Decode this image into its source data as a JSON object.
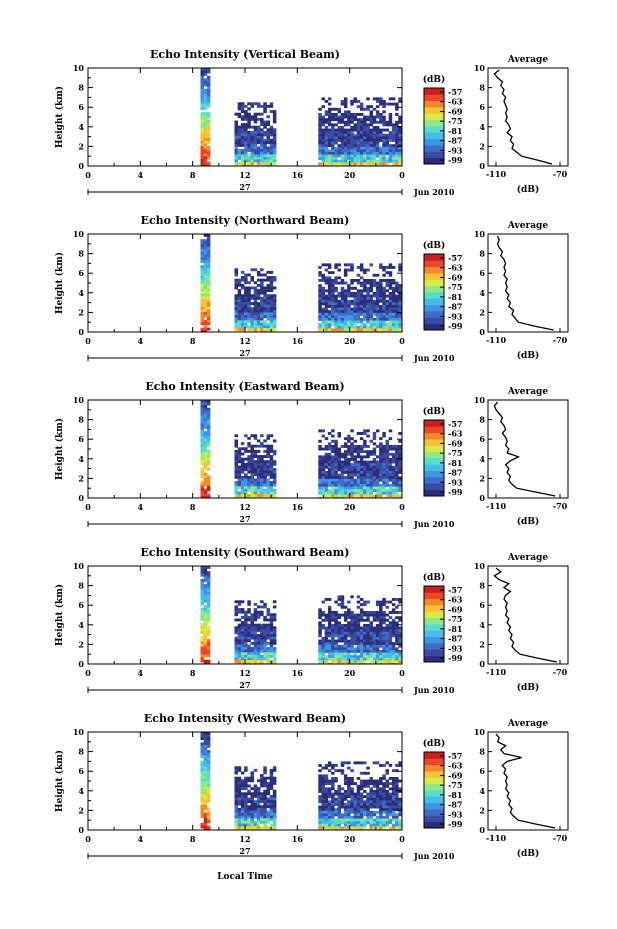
{
  "colors": {
    "scale": [
      "#2b2d7a",
      "#3a4aa0",
      "#3f6cc8",
      "#3d95e6",
      "#45bde9",
      "#58dccb",
      "#8fe88a",
      "#d8ea45",
      "#f6c333",
      "#f48a27",
      "#e8472a",
      "#c81f20"
    ]
  },
  "chart_data": [
    {
      "type": "heatmap",
      "title": "Echo Intensity (Vertical Beam)",
      "ylabel": "Height (km)",
      "yticks": [
        "0",
        "2",
        "4",
        "6",
        "8",
        "10"
      ],
      "xticks": [
        "0",
        "4",
        "8",
        "12",
        "16",
        "20",
        "0"
      ],
      "ylim": [
        0,
        10
      ],
      "xlim": [
        0,
        24
      ],
      "date_label": "27",
      "month_label": "Jun 2010",
      "colorbar": {
        "unit": "(dB)",
        "ticks": [
          "-57",
          "-63",
          "-69",
          "-75",
          "-81",
          "-87",
          "-93",
          "-99"
        ]
      },
      "data_blocks": [
        {
          "x": [
            8.6,
            9.1
          ],
          "y": [
            0,
            10
          ]
        },
        {
          "x": [
            11.2,
            14.2
          ],
          "y": [
            0,
            6.5
          ]
        },
        {
          "x": [
            17.6,
            23.8
          ],
          "y": [
            0,
            7
          ]
        }
      ],
      "profile": {
        "title": "Average",
        "xlabel": "(dB)",
        "xticks": [
          "-110",
          "-70"
        ],
        "xlim": [
          -115,
          -65
        ],
        "ylim": [
          0,
          10
        ],
        "height": [
          0.2,
          0.6,
          1,
          1.4,
          1.8,
          2.2,
          2.6,
          3,
          3.4,
          3.8,
          4.2,
          4.6,
          5,
          5.4,
          5.8,
          6.2,
          6.6,
          7,
          7.4,
          7.8,
          8.2,
          8.6,
          9,
          9.4,
          9.8
        ],
        "values": [
          -75,
          -84,
          -94,
          -97,
          -100,
          -99,
          -101,
          -100,
          -103,
          -101,
          -102,
          -104,
          -103,
          -104,
          -103,
          -104,
          -105,
          -104,
          -106,
          -105,
          -107,
          -106,
          -109,
          -111,
          -108
        ]
      }
    },
    {
      "type": "heatmap",
      "title": "Echo Intensity (Northward Beam)",
      "ylabel": "Height (km)",
      "yticks": [
        "0",
        "2",
        "4",
        "6",
        "8",
        "10"
      ],
      "xticks": [
        "0",
        "4",
        "8",
        "12",
        "16",
        "20",
        "0"
      ],
      "ylim": [
        0,
        10
      ],
      "xlim": [
        0,
        24
      ],
      "date_label": "27",
      "month_label": "Jun 2010",
      "colorbar": {
        "unit": "(dB)",
        "ticks": [
          "-57",
          "-63",
          "-69",
          "-75",
          "-81",
          "-87",
          "-93",
          "-99"
        ]
      },
      "data_blocks": [
        {
          "x": [
            8.6,
            9.1
          ],
          "y": [
            0,
            10
          ]
        },
        {
          "x": [
            11.2,
            14.2
          ],
          "y": [
            0,
            6.5
          ]
        },
        {
          "x": [
            17.6,
            23.8
          ],
          "y": [
            0,
            7
          ]
        }
      ],
      "profile": {
        "title": "Average",
        "xlabel": "(dB)",
        "xticks": [
          "-110",
          "-70"
        ],
        "xlim": [
          -115,
          -65
        ],
        "ylim": [
          0,
          10
        ],
        "height": [
          0.2,
          0.6,
          1,
          1.4,
          1.8,
          2.2,
          2.6,
          3,
          3.4,
          3.8,
          4.2,
          4.6,
          5,
          5.4,
          5.8,
          6.2,
          6.6,
          7,
          7.4,
          7.8,
          8.2,
          8.6,
          9,
          9.4,
          9.8
        ],
        "values": [
          -74,
          -86,
          -96,
          -98,
          -100,
          -99,
          -102,
          -101,
          -103,
          -102,
          -104,
          -103,
          -104,
          -103,
          -105,
          -104,
          -105,
          -104,
          -105,
          -107,
          -106,
          -108,
          -109,
          -108,
          -109
        ]
      }
    },
    {
      "type": "heatmap",
      "title": "Echo Intensity (Eastward Beam)",
      "ylabel": "Height (km)",
      "yticks": [
        "0",
        "2",
        "4",
        "6",
        "8",
        "10"
      ],
      "xticks": [
        "0",
        "4",
        "8",
        "12",
        "16",
        "20",
        "0"
      ],
      "ylim": [
        0,
        10
      ],
      "xlim": [
        0,
        24
      ],
      "date_label": "27",
      "month_label": "Jun 2010",
      "colorbar": {
        "unit": "(dB)",
        "ticks": [
          "-57",
          "-63",
          "-69",
          "-75",
          "-81",
          "-87",
          "-93",
          "-99"
        ]
      },
      "data_blocks": [
        {
          "x": [
            8.6,
            9.1
          ],
          "y": [
            0,
            10
          ]
        },
        {
          "x": [
            11.2,
            14.2
          ],
          "y": [
            0,
            6.5
          ]
        },
        {
          "x": [
            17.6,
            23.8
          ],
          "y": [
            0,
            7
          ]
        }
      ],
      "profile": {
        "title": "Average",
        "xlabel": "(dB)",
        "xticks": [
          "-110",
          "-70"
        ],
        "xlim": [
          -115,
          -65
        ],
        "ylim": [
          0,
          10
        ],
        "height": [
          0.2,
          0.6,
          1,
          1.4,
          1.8,
          2.2,
          2.6,
          3,
          3.4,
          3.8,
          4.2,
          4.6,
          5,
          5.4,
          5.8,
          6.2,
          6.6,
          7,
          7.4,
          7.8,
          8.2,
          8.6,
          9,
          9.4,
          9.8
        ],
        "values": [
          -73,
          -85,
          -97,
          -100,
          -102,
          -101,
          -103,
          -102,
          -104,
          -101,
          -96,
          -103,
          -102,
          -104,
          -103,
          -104,
          -106,
          -104,
          -105,
          -107,
          -106,
          -108,
          -110,
          -111,
          -109
        ]
      }
    },
    {
      "type": "heatmap",
      "title": "Echo Intensity (Southward Beam)",
      "ylabel": "Height (km)",
      "yticks": [
        "0",
        "2",
        "4",
        "6",
        "8",
        "10"
      ],
      "xticks": [
        "0",
        "4",
        "8",
        "12",
        "16",
        "20",
        "0"
      ],
      "ylim": [
        0,
        10
      ],
      "xlim": [
        0,
        24
      ],
      "date_label": "27",
      "month_label": "Jun 2010",
      "colorbar": {
        "unit": "(dB)",
        "ticks": [
          "-57",
          "-63",
          "-69",
          "-75",
          "-81",
          "-87",
          "-93",
          "-99"
        ]
      },
      "data_blocks": [
        {
          "x": [
            8.6,
            9.1
          ],
          "y": [
            0,
            10
          ]
        },
        {
          "x": [
            11.2,
            14.2
          ],
          "y": [
            0,
            6.5
          ]
        },
        {
          "x": [
            17.6,
            23.8
          ],
          "y": [
            0,
            7
          ]
        }
      ],
      "profile": {
        "title": "Average",
        "xlabel": "(dB)",
        "xticks": [
          "-110",
          "-70"
        ],
        "xlim": [
          -115,
          -65
        ],
        "ylim": [
          0,
          10
        ],
        "height": [
          0.2,
          0.6,
          1,
          1.4,
          1.8,
          2.2,
          2.6,
          3,
          3.4,
          3.8,
          4.2,
          4.6,
          5,
          5.4,
          5.8,
          6.2,
          6.6,
          7,
          7.4,
          7.8,
          8.2,
          8.6,
          9,
          9.4,
          9.8
        ],
        "values": [
          -72,
          -84,
          -95,
          -98,
          -100,
          -99,
          -101,
          -100,
          -102,
          -101,
          -103,
          -102,
          -104,
          -103,
          -104,
          -103,
          -105,
          -104,
          -101,
          -105,
          -102,
          -108,
          -111,
          -107,
          -110
        ]
      }
    },
    {
      "type": "heatmap",
      "title": "Echo Intensity (Westward Beam)",
      "ylabel": "Height (km)",
      "yticks": [
        "0",
        "2",
        "4",
        "6",
        "8",
        "10"
      ],
      "xticks": [
        "0",
        "4",
        "8",
        "12",
        "16",
        "20",
        "0"
      ],
      "ylim": [
        0,
        10
      ],
      "xlim": [
        0,
        24
      ],
      "date_label": "27",
      "month_label": "Jun 2010",
      "colorbar": {
        "unit": "(dB)",
        "ticks": [
          "-57",
          "-63",
          "-69",
          "-75",
          "-81",
          "-87",
          "-93",
          "-99"
        ]
      },
      "data_blocks": [
        {
          "x": [
            8.6,
            9.1
          ],
          "y": [
            0,
            10
          ]
        },
        {
          "x": [
            11.2,
            14.2
          ],
          "y": [
            0,
            6.5
          ]
        },
        {
          "x": [
            17.6,
            23.8
          ],
          "y": [
            0,
            7
          ]
        }
      ],
      "profile": {
        "title": "Average",
        "xlabel": "(dB)",
        "xticks": [
          "-110",
          "-70"
        ],
        "xlim": [
          -115,
          -65
        ],
        "ylim": [
          0,
          10
        ],
        "height": [
          0.2,
          0.6,
          1,
          1.4,
          1.8,
          2.2,
          2.6,
          3,
          3.4,
          3.8,
          4.2,
          4.6,
          5,
          5.4,
          5.8,
          6.2,
          6.6,
          7,
          7.4,
          7.8,
          8.2,
          8.6,
          9,
          9.4,
          9.8
        ],
        "values": [
          -73,
          -85,
          -96,
          -99,
          -101,
          -100,
          -102,
          -101,
          -103,
          -102,
          -104,
          -103,
          -104,
          -103,
          -105,
          -104,
          -106,
          -103,
          -94,
          -105,
          -107,
          -104,
          -109,
          -108,
          -110
        ]
      }
    }
  ],
  "footer": {
    "xlabel": "Local Time"
  }
}
